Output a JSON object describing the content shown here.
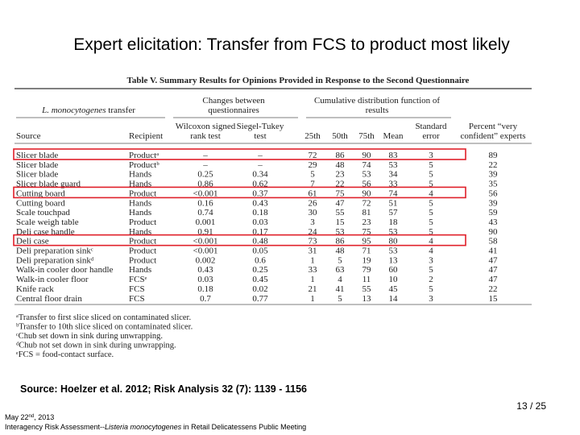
{
  "slide": {
    "title": "Expert elicitation: Transfer from FCS to product most likely",
    "source": "Source: Hoelzer et al. 2012; Risk Analysis 32 (7): 1139 - 1156",
    "page_number": "13 / 25",
    "footer": {
      "date": [
        "May 22",
        "nd",
        ", 2013"
      ],
      "meeting": [
        "Interagency Risk Assessment--",
        "Listeria monocytogenes",
        " in Retail Delicatessens Public Meeting"
      ]
    }
  },
  "table": {
    "title": "Table V. Summary Results for Opinions Provided in Response to the Second Questionnaire",
    "group_headers": {
      "transfer": [
        "L. monocytogenes",
        " transfer"
      ],
      "changes": [
        "Changes between",
        "questionnaires"
      ],
      "cdf": [
        "Cumulative distribution function of",
        "results"
      ]
    },
    "columns": [
      [
        "Source"
      ],
      [
        "Recipient"
      ],
      [
        "Wilcoxon signed",
        "rank test"
      ],
      [
        "Siegel-Tukey",
        "test"
      ],
      [
        "25th"
      ],
      [
        "50th"
      ],
      [
        "75th"
      ],
      [
        "Mean"
      ],
      [
        "Standard",
        "error"
      ],
      [
        "Percent “very",
        "confident” experts"
      ]
    ],
    "rows": [
      {
        "cells": [
          "Slicer blade",
          "Productᵃ",
          "–",
          "–",
          "72",
          "86",
          "90",
          "83",
          "3",
          "89"
        ],
        "highlight": true
      },
      {
        "cells": [
          "Slicer blade",
          "Productᵇ",
          "–",
          "–",
          "29",
          "48",
          "74",
          "53",
          "5",
          "22"
        ]
      },
      {
        "cells": [
          "Slicer blade",
          "Hands",
          "0.25",
          "0.34",
          "5",
          "23",
          "53",
          "34",
          "5",
          "39"
        ]
      },
      {
        "cells": [
          "Slicer blade guard",
          "Hands",
          "0.86",
          "0.62",
          "7",
          "22",
          "56",
          "33",
          "5",
          "35"
        ]
      },
      {
        "cells": [
          "Cutting board",
          "Product",
          "<0.001",
          "0.37",
          "61",
          "75",
          "90",
          "74",
          "4",
          "56"
        ],
        "highlight": true
      },
      {
        "cells": [
          "Cutting board",
          "Hands",
          "0.16",
          "0.43",
          "26",
          "47",
          "72",
          "51",
          "5",
          "39"
        ]
      },
      {
        "cells": [
          "Scale touchpad",
          "Hands",
          "0.74",
          "0.18",
          "30",
          "55",
          "81",
          "57",
          "5",
          "59"
        ]
      },
      {
        "cells": [
          "Scale weigh table",
          "Product",
          "0.001",
          "0.03",
          "3",
          "15",
          "23",
          "18",
          "5",
          "43"
        ]
      },
      {
        "cells": [
          "Deli case handle",
          "Hands",
          "0.91",
          "0.17",
          "24",
          "53",
          "75",
          "53",
          "5",
          "90"
        ]
      },
      {
        "cells": [
          "Deli case",
          "Product",
          "<0.001",
          "0.48",
          "73",
          "86",
          "95",
          "80",
          "4",
          "58"
        ],
        "highlight": true
      },
      {
        "cells": [
          "Deli preparation sinkᶜ",
          "Product",
          "<0.001",
          "0.05",
          "31",
          "48",
          "71",
          "53",
          "4",
          "41"
        ]
      },
      {
        "cells": [
          "Deli preparation sinkᵈ",
          "Product",
          "0.002",
          "0.6",
          "1",
          "5",
          "19",
          "13",
          "3",
          "47"
        ]
      },
      {
        "cells": [
          "Walk-in cooler door handle",
          "Hands",
          "0.43",
          "0.25",
          "33",
          "63",
          "79",
          "60",
          "5",
          "47"
        ]
      },
      {
        "cells": [
          "Walk-in cooler floor",
          "FCSᵉ",
          "0.03",
          "0.45",
          "1",
          "4",
          "11",
          "10",
          "2",
          "47"
        ]
      },
      {
        "cells": [
          "Knife rack",
          "FCS",
          "0.18",
          "0.02",
          "21",
          "41",
          "55",
          "45",
          "5",
          "22"
        ]
      },
      {
        "cells": [
          "Central floor drain",
          "FCS",
          "0.7",
          "0.77",
          "1",
          "5",
          "13",
          "14",
          "3",
          "15"
        ]
      }
    ],
    "footnotes": [
      "ᵃTransfer to first slice sliced on contaminated slicer.",
      "ᵇTransfer to 10th slice sliced on contaminated slicer.",
      "ᶜChub set down in sink during unwrapping.",
      "ᵈChub not set down in sink during unwrapping.",
      "ᵉFCS = food-contact surface."
    ]
  }
}
